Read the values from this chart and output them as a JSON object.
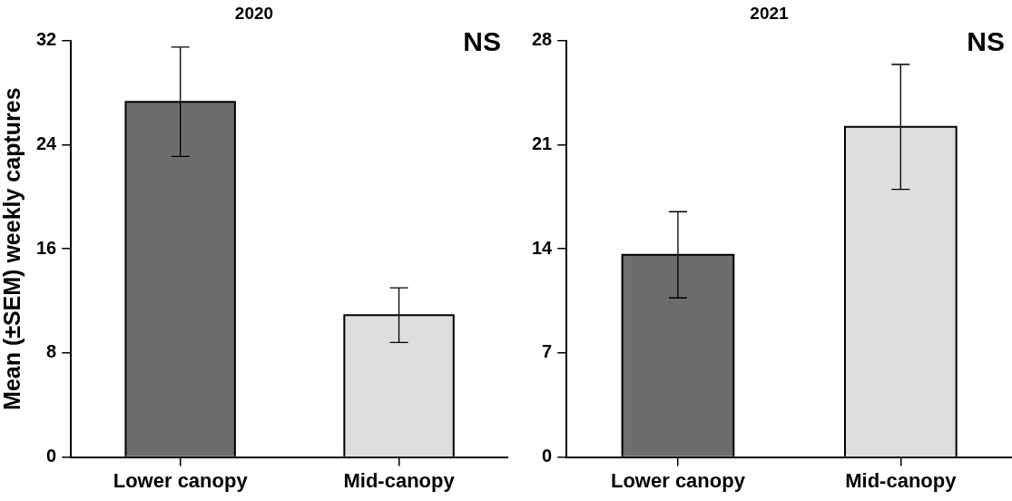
{
  "chart_data": [
    {
      "type": "bar",
      "title": "2020",
      "ylabel": "Mean (±SEM) weekly captures",
      "categories": [
        "Lower canopy",
        "Mid-canopy"
      ],
      "values": [
        27.3,
        10.9
      ],
      "errors": [
        4.2,
        2.1
      ],
      "colors": [
        "#6d6d6d",
        "#dedede"
      ],
      "ylim": [
        0,
        32
      ],
      "yticks": [
        0,
        8,
        16,
        24,
        32
      ],
      "grid": false,
      "annotations": [
        "NS"
      ]
    },
    {
      "type": "bar",
      "title": "2021",
      "categories": [
        "Lower canopy",
        "Mid-canopy"
      ],
      "values": [
        13.6,
        22.2
      ],
      "errors": [
        2.9,
        4.2
      ],
      "colors": [
        "#6d6d6d",
        "#dedede"
      ],
      "ylim": [
        0,
        28
      ],
      "yticks": [
        0,
        7,
        14,
        21,
        28
      ],
      "grid": false,
      "annotations": [
        "NS"
      ]
    }
  ]
}
